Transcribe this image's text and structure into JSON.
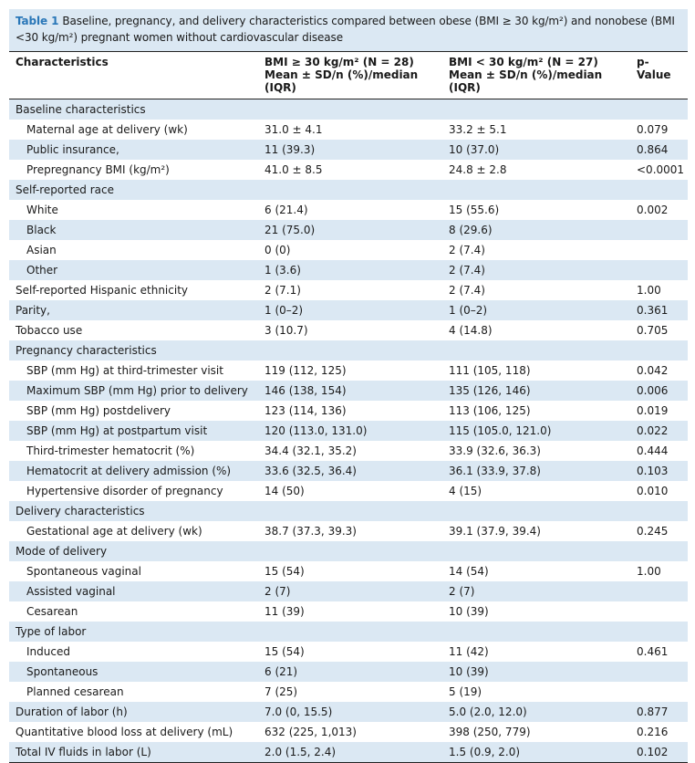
{
  "caption": {
    "number": "Table 1",
    "text": "Baseline, pregnancy, and delivery characteristics compared between obese (BMI ≥ 30 kg/m²) and nonobese (BMI <30 kg/m²) pregnant women without cardiovascular disease"
  },
  "header": {
    "col1": "Characteristics",
    "col2_line1": "BMI ≥ 30 kg/m² (N = 28)",
    "col2_line2": "Mean ± SD/n (%)/median (IQR)",
    "col3_line1": "BMI < 30 kg/m² (N = 27)",
    "col3_line2": "Mean ± SD/n (%)/median (IQR)",
    "col4": "p-Value"
  },
  "rows": [
    {
      "label": "Baseline characteristics",
      "obese": "",
      "nonobese": "",
      "p": "",
      "indent": false
    },
    {
      "label": "Maternal age at delivery (wk)",
      "obese": "31.0 ± 4.1",
      "nonobese": "33.2 ± 5.1",
      "p": "0.079",
      "indent": true
    },
    {
      "label": "Public insurance,",
      "obese": "11 (39.3)",
      "nonobese": "10 (37.0)",
      "p": "0.864",
      "indent": true
    },
    {
      "label": "Prepregnancy BMI (kg/m²)",
      "obese": "41.0 ± 8.5",
      "nonobese": "24.8 ± 2.8",
      "p": "<0.0001",
      "indent": true
    },
    {
      "label": "Self-reported race",
      "obese": "",
      "nonobese": "",
      "p": "",
      "indent": false
    },
    {
      "label": "White",
      "obese": "6 (21.4)",
      "nonobese": "15 (55.6)",
      "p": "0.002",
      "indent": true
    },
    {
      "label": "Black",
      "obese": "21 (75.0)",
      "nonobese": "8 (29.6)",
      "p": "",
      "indent": true
    },
    {
      "label": "Asian",
      "obese": "0 (0)",
      "nonobese": "2 (7.4)",
      "p": "",
      "indent": true
    },
    {
      "label": "Other",
      "obese": "1 (3.6)",
      "nonobese": "2 (7.4)",
      "p": "",
      "indent": true
    },
    {
      "label": "Self-reported Hispanic ethnicity",
      "obese": "2 (7.1)",
      "nonobese": "2 (7.4)",
      "p": "1.00",
      "indent": false
    },
    {
      "label": "Parity,",
      "obese": "1 (0–2)",
      "nonobese": "1 (0–2)",
      "p": "0.361",
      "indent": false
    },
    {
      "label": "Tobacco use",
      "obese": "3 (10.7)",
      "nonobese": "4 (14.8)",
      "p": "0.705",
      "indent": false
    },
    {
      "label": "Pregnancy characteristics",
      "obese": "",
      "nonobese": "",
      "p": "",
      "indent": false
    },
    {
      "label": "SBP (mm Hg) at third-trimester visit",
      "obese": "119 (112, 125)",
      "nonobese": "111 (105, 118)",
      "p": "0.042",
      "indent": true
    },
    {
      "label": "Maximum SBP (mm Hg) prior to delivery",
      "obese": "146 (138, 154)",
      "nonobese": "135 (126, 146)",
      "p": "0.006",
      "indent": true
    },
    {
      "label": "SBP (mm Hg) postdelivery",
      "obese": "123 (114, 136)",
      "nonobese": "113 (106, 125)",
      "p": "0.019",
      "indent": true
    },
    {
      "label": "SBP (mm Hg) at postpartum visit",
      "obese": "120 (113.0, 131.0)",
      "nonobese": "115 (105.0, 121.0)",
      "p": "0.022",
      "indent": true
    },
    {
      "label": "Third-trimester hematocrit (%)",
      "obese": "34.4 (32.1, 35.2)",
      "nonobese": "33.9 (32.6, 36.3)",
      "p": "0.444",
      "indent": true
    },
    {
      "label": "Hematocrit at delivery admission (%)",
      "obese": "33.6 (32.5, 36.4)",
      "nonobese": "36.1 (33.9, 37.8)",
      "p": "0.103",
      "indent": true
    },
    {
      "label": "Hypertensive disorder of pregnancy",
      "obese": "14 (50)",
      "nonobese": "4 (15)",
      "p": "0.010",
      "indent": true
    },
    {
      "label": "Delivery characteristics",
      "obese": "",
      "nonobese": "",
      "p": "",
      "indent": false
    },
    {
      "label": "Gestational age at delivery (wk)",
      "obese": "38.7 (37.3, 39.3)",
      "nonobese": "39.1 (37.9, 39.4)",
      "p": "0.245",
      "indent": true
    },
    {
      "label": "Mode of delivery",
      "obese": "",
      "nonobese": "",
      "p": "",
      "indent": false
    },
    {
      "label": "Spontaneous vaginal",
      "obese": "15 (54)",
      "nonobese": "14 (54)",
      "p": "1.00",
      "indent": true
    },
    {
      "label": "Assisted vaginal",
      "obese": "2 (7)",
      "nonobese": "2 (7)",
      "p": "",
      "indent": true
    },
    {
      "label": "Cesarean",
      "obese": "11 (39)",
      "nonobese": "10 (39)",
      "p": "",
      "indent": true
    },
    {
      "label": "Type of labor",
      "obese": "",
      "nonobese": "",
      "p": "",
      "indent": false
    },
    {
      "label": "Induced",
      "obese": "15 (54)",
      "nonobese": "11 (42)",
      "p": "0.461",
      "indent": true
    },
    {
      "label": "Spontaneous",
      "obese": "6 (21)",
      "nonobese": "10 (39)",
      "p": "",
      "indent": true
    },
    {
      "label": "Planned cesarean",
      "obese": "7 (25)",
      "nonobese": "5 (19)",
      "p": "",
      "indent": true
    },
    {
      "label": "Duration of labor (h)",
      "obese": "7.0 (0, 15.5)",
      "nonobese": "5.0 (2.0, 12.0)",
      "p": "0.877",
      "indent": false
    },
    {
      "label": "Quantitative blood loss at delivery (mL)",
      "obese": "632 (225, 1,013)",
      "nonobese": "398 (250, 779)",
      "p": "0.216",
      "indent": false
    },
    {
      "label": "Total IV fluids in labor (L)",
      "obese": "2.0 (1.5, 2.4)",
      "nonobese": "1.5 (0.9, 2.0)",
      "p": "0.102",
      "indent": false
    }
  ],
  "colors": {
    "shade": "#dbe8f3",
    "caption_number": "#2a77b8",
    "rule": "#222222"
  }
}
